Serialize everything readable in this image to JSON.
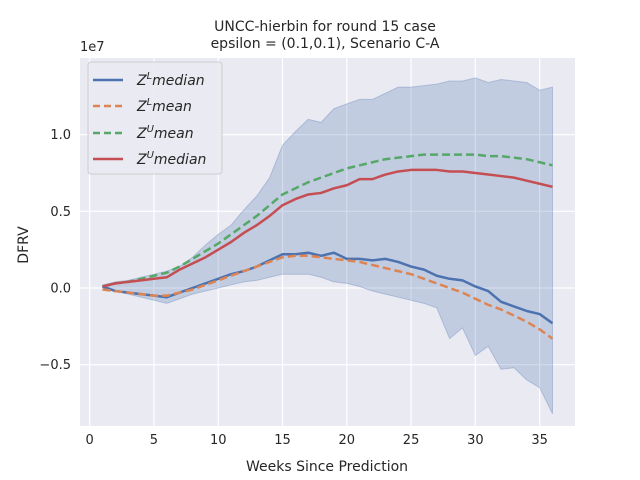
{
  "chart_data": {
    "type": "line",
    "title": [
      "UNCC-hierbin for round 15 case",
      "epsilon = (0.1,0.1), Scenario C-A"
    ],
    "xlabel": "Weeks Since Prediction",
    "ylabel": "DFRV",
    "y_offset_label": "1e7",
    "xlim": [
      -0.75,
      37.75
    ],
    "ylim": [
      -0.9,
      1.5
    ],
    "xticks": [
      0,
      5,
      10,
      15,
      20,
      25,
      30,
      35
    ],
    "xtick_labels": [
      "0",
      "5",
      "10",
      "15",
      "20",
      "25",
      "30",
      "35"
    ],
    "yticks": [
      -0.5,
      0.0,
      0.5,
      1.0
    ],
    "ytick_labels": [
      "−0.5",
      "0.0",
      "0.5",
      "1.0"
    ],
    "grid": true,
    "legend_position": "top-left",
    "x": [
      1,
      2,
      3,
      4,
      5,
      6,
      7,
      8,
      9,
      10,
      11,
      12,
      13,
      14,
      15,
      16,
      17,
      18,
      19,
      20,
      21,
      22,
      23,
      24,
      25,
      26,
      27,
      28,
      29,
      30,
      31,
      32,
      33,
      34,
      35,
      36
    ],
    "band": {
      "lower": [
        0.0,
        -0.02,
        -0.04,
        -0.06,
        -0.08,
        -0.1,
        -0.07,
        -0.04,
        -0.02,
        0.0,
        0.02,
        0.04,
        0.05,
        0.07,
        0.09,
        0.09,
        0.09,
        0.07,
        0.04,
        0.03,
        0.01,
        -0.02,
        -0.04,
        -0.06,
        -0.08,
        -0.1,
        -0.13,
        -0.33,
        -0.26,
        -0.44,
        -0.38,
        -0.53,
        -0.52,
        -0.6,
        -0.65,
        -0.82
      ],
      "upper": [
        0.02,
        0.04,
        0.05,
        0.07,
        0.09,
        0.11,
        0.14,
        0.2,
        0.28,
        0.35,
        0.41,
        0.51,
        0.6,
        0.72,
        0.93,
        1.02,
        1.1,
        1.08,
        1.17,
        1.2,
        1.23,
        1.23,
        1.27,
        1.31,
        1.31,
        1.32,
        1.33,
        1.35,
        1.35,
        1.37,
        1.34,
        1.36,
        1.35,
        1.34,
        1.29,
        1.31
      ]
    },
    "series": [
      {
        "name": "Z^L median",
        "color": "#4c72b0",
        "dash": "solid",
        "values": [
          0.01,
          -0.02,
          -0.03,
          -0.04,
          -0.05,
          -0.06,
          -0.03,
          0.0,
          0.03,
          0.06,
          0.09,
          0.11,
          0.14,
          0.18,
          0.22,
          0.22,
          0.23,
          0.21,
          0.23,
          0.19,
          0.19,
          0.18,
          0.19,
          0.17,
          0.14,
          0.12,
          0.08,
          0.06,
          0.05,
          0.01,
          -0.02,
          -0.09,
          -0.12,
          -0.15,
          -0.17,
          -0.23
        ]
      },
      {
        "name": "Z^L mean",
        "color": "#dd8452",
        "dash": "dashed",
        "values": [
          -0.01,
          -0.02,
          -0.03,
          -0.04,
          -0.05,
          -0.05,
          -0.03,
          -0.01,
          0.02,
          0.05,
          0.08,
          0.11,
          0.14,
          0.17,
          0.2,
          0.21,
          0.21,
          0.2,
          0.19,
          0.18,
          0.17,
          0.15,
          0.13,
          0.11,
          0.09,
          0.06,
          0.03,
          0.0,
          -0.03,
          -0.07,
          -0.11,
          -0.14,
          -0.18,
          -0.22,
          -0.27,
          -0.33
        ]
      },
      {
        "name": "Z^U mean",
        "color": "#55a868",
        "dash": "dashed",
        "values": [
          0.01,
          0.03,
          0.04,
          0.06,
          0.08,
          0.1,
          0.14,
          0.19,
          0.24,
          0.29,
          0.35,
          0.41,
          0.47,
          0.54,
          0.61,
          0.65,
          0.69,
          0.72,
          0.75,
          0.78,
          0.8,
          0.82,
          0.84,
          0.85,
          0.86,
          0.87,
          0.87,
          0.87,
          0.87,
          0.87,
          0.86,
          0.86,
          0.85,
          0.84,
          0.82,
          0.8
        ]
      },
      {
        "name": "Z^U median",
        "color": "#c44e52",
        "dash": "solid",
        "values": [
          0.01,
          0.03,
          0.04,
          0.05,
          0.06,
          0.07,
          0.12,
          0.16,
          0.2,
          0.25,
          0.3,
          0.36,
          0.41,
          0.47,
          0.54,
          0.58,
          0.61,
          0.62,
          0.65,
          0.67,
          0.71,
          0.71,
          0.74,
          0.76,
          0.77,
          0.77,
          0.77,
          0.76,
          0.76,
          0.75,
          0.74,
          0.73,
          0.72,
          0.7,
          0.68,
          0.66
        ]
      }
    ]
  },
  "legend": [
    {
      "base": "Z",
      "sup": "L",
      "label": "median"
    },
    {
      "base": "Z",
      "sup": "L",
      "label": "mean"
    },
    {
      "base": "Z",
      "sup": "U",
      "label": "mean"
    },
    {
      "base": "Z",
      "sup": "U",
      "label": "median"
    }
  ]
}
